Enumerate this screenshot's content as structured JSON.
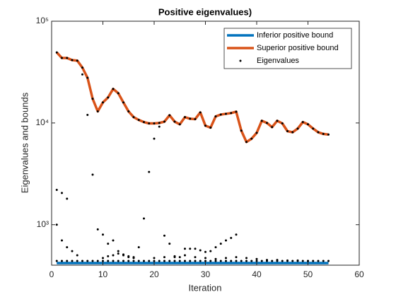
{
  "chart_data": {
    "type": "line",
    "title": "Positive eigenvalues)",
    "xlabel": "Iteration",
    "ylabel": "Eigenvalues and bounds",
    "xlim": [
      0,
      60
    ],
    "xticks": [
      0,
      10,
      20,
      30,
      40,
      50,
      60
    ],
    "ylim": [
      400,
      100000
    ],
    "log_y": true,
    "yticks": [
      {
        "value": 1000,
        "label": "10³"
      },
      {
        "value": 10000,
        "label": "10⁴"
      },
      {
        "value": 100000,
        "label": "10⁵"
      }
    ],
    "legend": "northeast",
    "x": [
      1,
      2,
      3,
      4,
      5,
      6,
      7,
      8,
      9,
      10,
      11,
      12,
      13,
      14,
      15,
      16,
      17,
      18,
      19,
      20,
      21,
      22,
      23,
      24,
      25,
      26,
      27,
      28,
      29,
      30,
      31,
      32,
      33,
      34,
      35,
      36,
      37,
      38,
      39,
      40,
      41,
      42,
      43,
      44,
      45,
      46,
      47,
      48,
      49,
      50,
      51,
      52,
      53,
      54
    ],
    "series": [
      {
        "name": "Inferior positive bound",
        "color": "#0072bd",
        "values": [
          420,
          420,
          420,
          420,
          420,
          420,
          420,
          420,
          420,
          420,
          420,
          420,
          420,
          420,
          420,
          420,
          420,
          420,
          420,
          420,
          420,
          420,
          420,
          420,
          420,
          420,
          420,
          420,
          420,
          420,
          420,
          420,
          420,
          420,
          420,
          420,
          420,
          420,
          420,
          420,
          420,
          420,
          420,
          420,
          420,
          420,
          420,
          420,
          420,
          420,
          420,
          420,
          420,
          420
        ]
      },
      {
        "name": "Superior positive bound",
        "color": "#d95319",
        "values": [
          49400,
          43500,
          43500,
          41500,
          41000,
          35000,
          27800,
          17300,
          13000,
          15900,
          17800,
          21600,
          19600,
          15900,
          13000,
          11400,
          10700,
          10200,
          9900,
          9900,
          10000,
          10300,
          11900,
          10300,
          9700,
          11400,
          11000,
          10900,
          12700,
          9400,
          9000,
          11600,
          12100,
          12300,
          12500,
          12900,
          8400,
          6500,
          7000,
          8000,
          10500,
          10000,
          9100,
          10500,
          9900,
          8300,
          8100,
          8800,
          10200,
          9700,
          8800,
          8100,
          7800,
          7700
        ]
      },
      {
        "name": "Eigenvalues",
        "color": "#000000",
        "type": "scatter",
        "x": [
          1,
          2,
          3,
          4,
          5,
          6,
          7,
          8,
          9,
          10,
          11,
          12,
          13,
          14,
          15,
          16,
          17,
          18,
          19,
          20,
          21,
          22,
          23,
          24,
          25,
          26,
          27,
          28,
          29,
          30,
          31,
          32,
          33,
          34,
          35,
          36,
          37,
          38,
          39,
          40,
          41,
          42,
          43,
          44,
          45,
          46,
          47,
          48,
          49,
          50,
          51,
          52,
          53,
          54,
          1,
          2,
          3,
          4,
          5,
          6,
          7,
          8,
          9,
          10,
          11,
          12,
          13,
          14,
          15,
          16,
          17,
          18,
          19,
          20,
          21,
          22,
          23,
          24,
          25,
          26,
          27,
          28,
          29,
          30,
          31,
          32,
          33,
          34,
          35,
          36,
          37,
          38,
          39,
          40,
          41,
          42,
          43,
          44,
          45,
          46,
          47,
          48,
          49,
          50,
          51,
          52,
          53,
          54,
          1,
          1,
          2,
          2,
          3,
          3,
          4,
          5,
          6,
          7,
          8,
          9,
          10,
          11,
          12,
          13,
          14,
          15,
          16,
          17,
          18,
          19,
          20,
          21,
          22,
          23,
          24,
          25,
          26,
          27,
          28,
          29,
          30,
          31,
          32,
          33,
          34,
          35,
          36,
          10,
          11,
          12,
          13,
          14,
          15,
          16,
          20,
          22,
          24,
          26,
          28,
          30,
          32,
          34,
          36,
          38,
          40,
          42,
          44,
          46,
          48,
          50
        ],
        "values": [
          49400,
          43500,
          43500,
          41500,
          41000,
          35000,
          27800,
          17300,
          13000,
          15900,
          17800,
          21600,
          19600,
          15900,
          13000,
          11400,
          10700,
          10200,
          9900,
          9900,
          10000,
          10300,
          11900,
          10300,
          9700,
          11400,
          11000,
          10900,
          12700,
          9400,
          9000,
          11600,
          12100,
          12300,
          12500,
          12900,
          8400,
          6500,
          7000,
          8000,
          10500,
          10000,
          9100,
          10500,
          9900,
          8300,
          8100,
          8800,
          10200,
          9700,
          8800,
          8100,
          7800,
          7700,
          440,
          440,
          440,
          440,
          440,
          440,
          440,
          440,
          440,
          440,
          440,
          440,
          440,
          440,
          440,
          440,
          440,
          440,
          440,
          440,
          440,
          440,
          440,
          440,
          440,
          440,
          440,
          440,
          440,
          440,
          440,
          440,
          440,
          440,
          440,
          440,
          440,
          440,
          440,
          440,
          440,
          440,
          440,
          440,
          440,
          440,
          440,
          440,
          440,
          440,
          440,
          440,
          440,
          440,
          2200,
          1000,
          2050,
          700,
          1800,
          600,
          550,
          500,
          30000,
          12000,
          3100,
          900,
          800,
          650,
          700,
          550,
          500,
          480,
          470,
          600,
          1150,
          3300,
          7000,
          9200,
          780,
          650,
          480,
          480,
          580,
          580,
          580,
          560,
          540,
          550,
          600,
          650,
          700,
          740,
          800,
          470,
          490,
          500,
          520,
          510,
          490,
          480,
          470,
          480,
          490,
          500,
          480,
          470,
          460,
          470,
          480,
          470,
          460,
          450,
          450,
          445,
          445,
          440
        ]
      }
    ]
  }
}
